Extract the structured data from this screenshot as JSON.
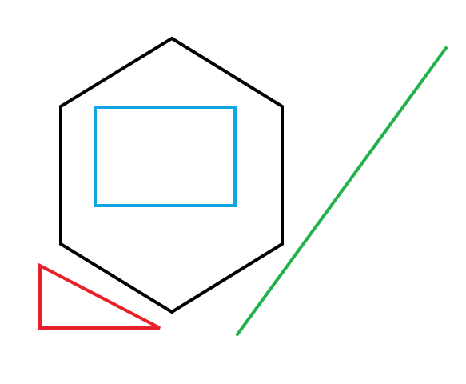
{
  "canvas": {
    "background": "#ffffff"
  },
  "shapes": [
    {
      "id": "hexagon",
      "kind": "hexagon",
      "stroke": "#000000",
      "fill": "none"
    },
    {
      "id": "rectangle",
      "kind": "rectangle",
      "stroke": "#12A4E3",
      "fill": "none"
    },
    {
      "id": "triangle",
      "kind": "right-triangle",
      "stroke": "#E8202A",
      "fill": "none"
    },
    {
      "id": "line",
      "kind": "line",
      "stroke": "#22B14C"
    }
  ]
}
